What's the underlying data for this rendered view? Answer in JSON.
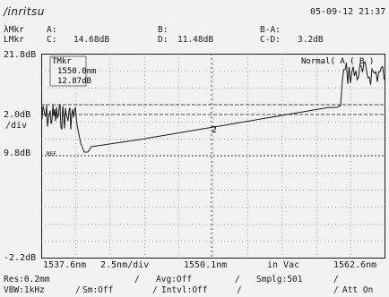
{
  "header": {
    "brand": "/inritsu",
    "datetime": "05-09-12 21:37"
  },
  "markers": {
    "lambda_label": "λMkr",
    "a_label": "A:",
    "b_label": "B:",
    "ba_label": "B-A:",
    "lmkr_label": "LMkr",
    "c_label": "C:",
    "c_value": "14.68dB",
    "d_label": "D:",
    "d_value": "11.48dB",
    "cd_label": "C-D:",
    "cd_value": "3.2dB"
  },
  "display": {
    "y_top": "21.8dB",
    "y_scale": "2.0dB",
    "y_scale_unit": "/div",
    "y_ref": "9.8dB",
    "ref_tag": "REF",
    "y_bottom": "-2.2dB",
    "x_start": "1537.6nm",
    "x_span": "2.5nm/div",
    "x_center": "1550.1nm",
    "medium": "in Vac",
    "x_stop": "1562.6nm",
    "marker_box_title": "TMkr",
    "marker_box_wavelength": "1550.0nm",
    "marker_box_level": "12.87dB",
    "mode": "Normal( A ( B )",
    "trace_marker_label": "2"
  },
  "settings": {
    "res": "Res:0.2mm",
    "avg": "Avg:Off",
    "smplg": "Smplg:501",
    "vbw": "VBW:1kHz",
    "sm": "Sm:Off",
    "intvl": "Intvl:Off",
    "att": "Att On"
  },
  "trace": {
    "color": "#1a1a1a",
    "background": "#f2f2f2"
  }
}
